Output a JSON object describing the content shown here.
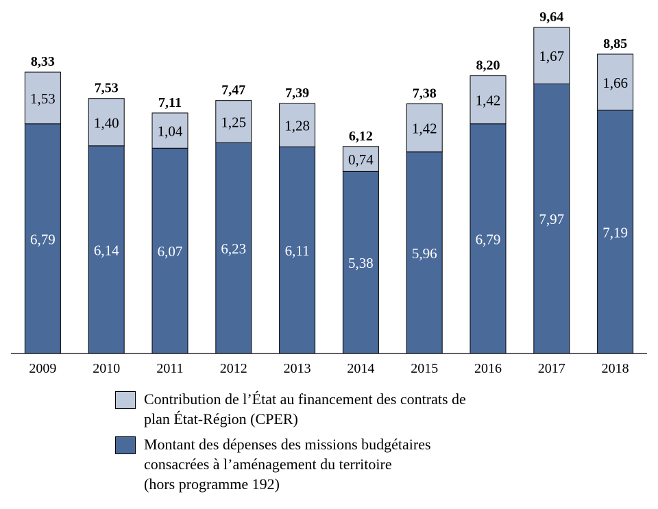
{
  "chart_data": {
    "type": "bar",
    "stacked": true,
    "categories": [
      "2009",
      "2010",
      "2011",
      "2012",
      "2013",
      "2014",
      "2015",
      "2016",
      "2017",
      "2018"
    ],
    "series": [
      {
        "name": "Montant des dépenses des missions budgétaires consacrées à l’aménagement du territoire (hors programme 192)",
        "values": [
          6.79,
          6.14,
          6.07,
          6.23,
          6.11,
          5.38,
          5.96,
          6.79,
          7.97,
          7.19
        ],
        "labels": [
          "6,79",
          "6,14",
          "6,07",
          "6,23",
          "6,11",
          "5,38",
          "5,96",
          "6,79",
          "7,97",
          "7,19"
        ],
        "color": "#4a6a9a"
      },
      {
        "name": "Contribution de l’État au financement des contrats de plan État-Région (CPER)",
        "values": [
          1.53,
          1.4,
          1.04,
          1.25,
          1.28,
          0.74,
          1.42,
          1.42,
          1.67,
          1.66
        ],
        "labels": [
          "1,53",
          "1,40",
          "1,04",
          "1,25",
          "1,28",
          "0,74",
          "1,42",
          "1,42",
          "1,67",
          "1,66"
        ],
        "color": "#bfcadd"
      }
    ],
    "totals": [
      8.33,
      7.53,
      7.11,
      7.47,
      7.39,
      6.12,
      7.38,
      8.2,
      9.64,
      8.85
    ],
    "total_labels": [
      "8,33",
      "7,53",
      "7,11",
      "7,47",
      "7,39",
      "6,12",
      "7,38",
      "8,20",
      "9,64",
      "8,85"
    ],
    "ylim": [
      0,
      9.64
    ],
    "grid": false,
    "legend_position": "bottom"
  },
  "legend": {
    "cper_lines": [
      "Contribution de l’État au financement des contrats de",
      "plan État-Région (CPER)"
    ],
    "missions_lines": [
      "Montant des dépenses des missions budgétaires",
      "consacrées à l’aménagement du territoire",
      "(hors programme 192)"
    ],
    "cper_color": "#bfcadd",
    "missions_color": "#4a6a9a"
  }
}
